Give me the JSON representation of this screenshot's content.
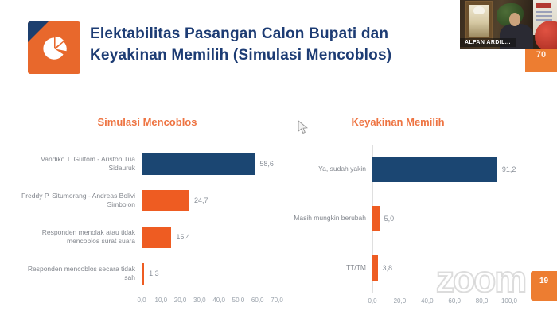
{
  "header": {
    "title_line1": "Elektabilitas Pasangan Calon Bupati dan",
    "title_line2": "Keyakinan Memilih (Simulasi Mencoblos)",
    "icon": "pie-chart-icon"
  },
  "video_overlay": {
    "participant_name": "ALFAN ARDIL...",
    "slide_badge": "70"
  },
  "slide_number_badge": "19",
  "watermark": "zoom",
  "colors": {
    "navy": "#1b4672",
    "orange": "#ee5c22",
    "title_navy": "#1d3c74",
    "chart_title_orange": "#ee7442",
    "badge_orange": "#ed7d31"
  },
  "chart_data": [
    {
      "type": "bar",
      "orientation": "horizontal",
      "title": "Simulasi Mencoblos",
      "categories": [
        "Vandiko T. Gultom - Ariston Tua Sidauruk",
        "Freddy P. Situmorang - Andreas Bolivi Simbolon",
        "Responden menolak atau tidak mencoblos surat suara",
        "Responden mencoblos secara tidak sah"
      ],
      "values": [
        58.6,
        24.7,
        15.4,
        1.3
      ],
      "value_labels": [
        "58,6",
        "24,7",
        "15,4",
        "1,3"
      ],
      "bar_colors": [
        "#1b4672",
        "#ee5c22",
        "#ee5c22",
        "#ee5c22"
      ],
      "xlim": [
        0,
        70
      ],
      "x_ticks": [
        "0,0",
        "10,0",
        "20,0",
        "30,0",
        "40,0",
        "50,0",
        "60,0",
        "70,0"
      ],
      "grid": false,
      "legend": "none"
    },
    {
      "type": "bar",
      "orientation": "horizontal",
      "title": "Keyakinan Memilih",
      "categories": [
        "Ya, sudah yakin",
        "Masih mungkin berubah",
        "TT/TM"
      ],
      "values": [
        91.2,
        5.0,
        3.8
      ],
      "value_labels": [
        "91,2",
        "5,0",
        "3,8"
      ],
      "bar_colors": [
        "#1b4672",
        "#ee5c22",
        "#ee5c22"
      ],
      "xlim": [
        0,
        100
      ],
      "x_ticks": [
        "0,0",
        "20,0",
        "40,0",
        "60,0",
        "80,0",
        "100,0"
      ],
      "grid": false,
      "legend": "none"
    }
  ]
}
